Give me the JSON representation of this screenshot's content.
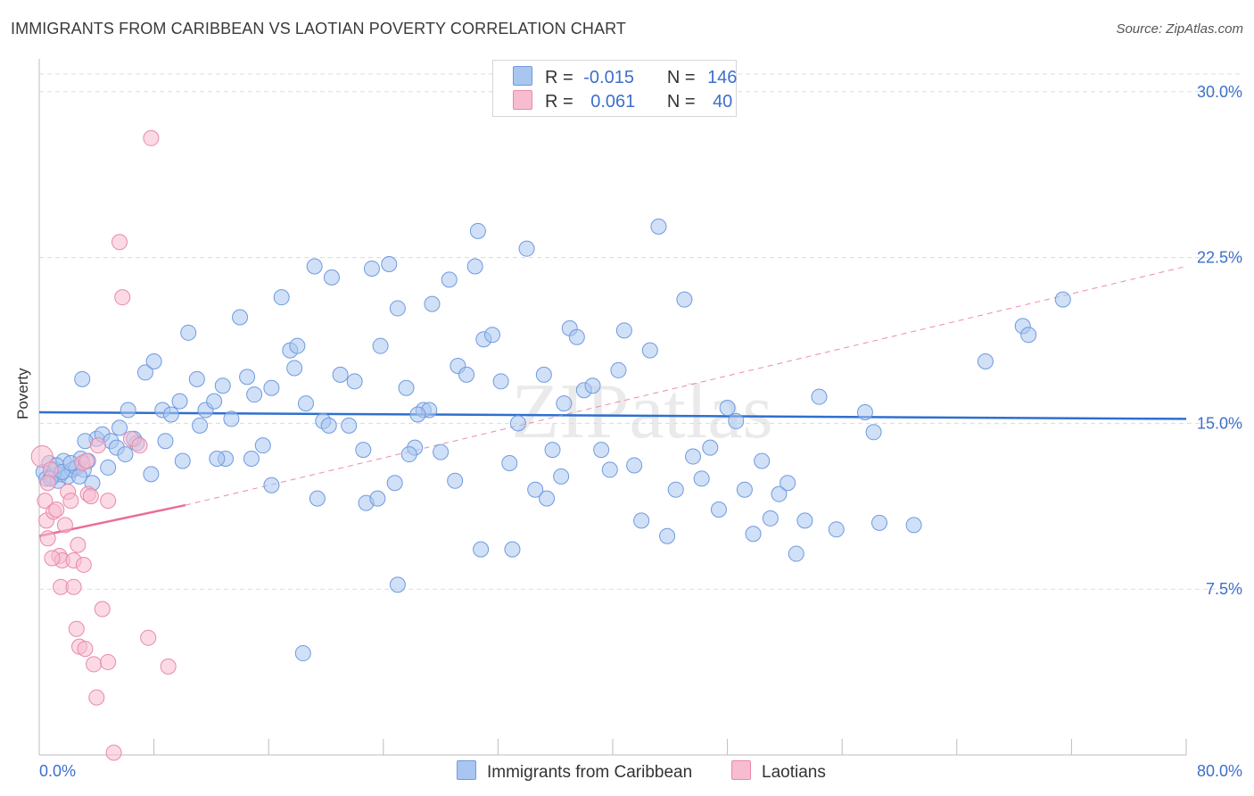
{
  "title": "IMMIGRANTS FROM CARIBBEAN VS LAOTIAN POVERTY CORRELATION CHART",
  "source": "Source: ZipAtlas.com",
  "watermark": "ZIPatlas",
  "legend": {
    "rows": [
      {
        "r_label": "R =",
        "r_value": "-0.015",
        "n_label": "N =",
        "n_value": "146",
        "color": "#a9c6f0",
        "border": "#6f9ae0"
      },
      {
        "r_label": "R =",
        "r_value": "0.061",
        "n_label": "N =",
        "n_value": "40",
        "color": "#f7bcd0",
        "border": "#e889aa"
      }
    ]
  },
  "bottom_legend": [
    {
      "label": "Immigrants from Caribbean",
      "color": "#a9c6f0",
      "border": "#6f9ae0"
    },
    {
      "label": "Laotians",
      "color": "#f7bcd0",
      "border": "#e889aa"
    }
  ],
  "chart_data": {
    "type": "scatter",
    "title": "IMMIGRANTS FROM CARIBBEAN VS LAOTIAN POVERTY CORRELATION CHART",
    "xlabel": "",
    "ylabel": "Poverty",
    "xlim": [
      0,
      80
    ],
    "ylim": [
      0,
      31
    ],
    "x_tick_labels": [
      "0.0%",
      "80.0%"
    ],
    "y_ticks": [
      7.5,
      15.0,
      22.5,
      30.0
    ],
    "y_tick_labels": [
      "7.5%",
      "15.0%",
      "22.5%",
      "30.0%"
    ],
    "grid": true,
    "legend_position": "top-center",
    "series": [
      {
        "name": "Immigrants from Caribbean",
        "color": "#6f9ae0",
        "fill": "#a9c6f0",
        "trend": {
          "x": [
            0,
            80
          ],
          "y": [
            15.5,
            15.2
          ],
          "style": "solid",
          "color": "#2f6fd0"
        },
        "points": [
          [
            0.3,
            12.8
          ],
          [
            0.5,
            12.5
          ],
          [
            0.7,
            13.2
          ],
          [
            0.9,
            12.6
          ],
          [
            1.1,
            12.9
          ],
          [
            1.3,
            12.4
          ],
          [
            1.5,
            12.7
          ],
          [
            1.7,
            13.3
          ],
          [
            2.0,
            12.6
          ],
          [
            2.3,
            12.9
          ],
          [
            2.6,
            13.0
          ],
          [
            2.9,
            13.4
          ],
          [
            3.1,
            12.9
          ],
          [
            3.4,
            13.3
          ],
          [
            3.7,
            12.3
          ],
          [
            0.8,
            12.5
          ],
          [
            1.2,
            13.1
          ],
          [
            1.6,
            12.8
          ],
          [
            2.2,
            13.2
          ],
          [
            2.8,
            12.6
          ],
          [
            3.0,
            17.0
          ],
          [
            4.0,
            14.3
          ],
          [
            4.4,
            14.5
          ],
          [
            5.0,
            14.2
          ],
          [
            5.6,
            14.8
          ],
          [
            6.2,
            15.6
          ],
          [
            6.8,
            14.1
          ],
          [
            7.4,
            17.3
          ],
          [
            8.0,
            17.8
          ],
          [
            8.6,
            15.6
          ],
          [
            9.2,
            15.4
          ],
          [
            9.8,
            16.0
          ],
          [
            10.4,
            19.1
          ],
          [
            11.0,
            17.0
          ],
          [
            11.6,
            15.6
          ],
          [
            12.2,
            16.0
          ],
          [
            12.8,
            16.7
          ],
          [
            13.4,
            15.2
          ],
          [
            14.0,
            19.8
          ],
          [
            14.5,
            17.1
          ],
          [
            15.0,
            16.3
          ],
          [
            15.6,
            14.0
          ],
          [
            16.2,
            16.6
          ],
          [
            16.9,
            20.7
          ],
          [
            17.5,
            18.3
          ],
          [
            18.0,
            18.5
          ],
          [
            18.6,
            15.9
          ],
          [
            19.2,
            22.1
          ],
          [
            19.8,
            15.1
          ],
          [
            20.4,
            21.6
          ],
          [
            21.0,
            17.2
          ],
          [
            21.6,
            14.9
          ],
          [
            22.0,
            16.9
          ],
          [
            22.6,
            13.8
          ],
          [
            23.2,
            22.0
          ],
          [
            23.8,
            18.5
          ],
          [
            24.4,
            22.2
          ],
          [
            25.0,
            20.2
          ],
          [
            25.6,
            16.6
          ],
          [
            26.2,
            13.9
          ],
          [
            26.8,
            15.6
          ],
          [
            27.4,
            20.4
          ],
          [
            28.0,
            13.7
          ],
          [
            28.6,
            21.5
          ],
          [
            29.2,
            17.6
          ],
          [
            29.8,
            17.2
          ],
          [
            30.4,
            22.1
          ],
          [
            30.6,
            23.7
          ],
          [
            31.0,
            18.8
          ],
          [
            31.6,
            19.0
          ],
          [
            32.2,
            16.9
          ],
          [
            32.8,
            13.2
          ],
          [
            33.4,
            15.0
          ],
          [
            34.0,
            22.9
          ],
          [
            34.6,
            12.0
          ],
          [
            35.2,
            17.2
          ],
          [
            35.8,
            13.8
          ],
          [
            36.4,
            12.6
          ],
          [
            37.0,
            19.3
          ],
          [
            37.5,
            18.9
          ],
          [
            38.0,
            16.5
          ],
          [
            38.6,
            16.7
          ],
          [
            39.2,
            13.8
          ],
          [
            39.8,
            12.9
          ],
          [
            40.4,
            17.4
          ],
          [
            40.8,
            19.2
          ],
          [
            41.5,
            13.1
          ],
          [
            42.0,
            10.6
          ],
          [
            42.6,
            18.3
          ],
          [
            43.2,
            23.9
          ],
          [
            43.8,
            9.9
          ],
          [
            44.4,
            12.0
          ],
          [
            45.0,
            20.6
          ],
          [
            45.6,
            13.5
          ],
          [
            46.2,
            12.5
          ],
          [
            46.8,
            13.9
          ],
          [
            47.4,
            11.1
          ],
          [
            48.0,
            15.7
          ],
          [
            48.6,
            15.1
          ],
          [
            49.2,
            12.0
          ],
          [
            49.8,
            10.0
          ],
          [
            50.4,
            13.3
          ],
          [
            51.0,
            10.7
          ],
          [
            51.6,
            11.8
          ],
          [
            52.2,
            12.3
          ],
          [
            52.8,
            9.1
          ],
          [
            53.4,
            10.6
          ],
          [
            54.4,
            16.2
          ],
          [
            55.6,
            10.2
          ],
          [
            57.6,
            15.5
          ],
          [
            58.2,
            14.6
          ],
          [
            58.6,
            10.5
          ],
          [
            61.0,
            10.4
          ],
          [
            66.0,
            17.8
          ],
          [
            68.6,
            19.4
          ],
          [
            69.0,
            19.0
          ],
          [
            71.4,
            20.6
          ],
          [
            14.8,
            13.4
          ],
          [
            13.0,
            13.4
          ],
          [
            6.6,
            14.3
          ],
          [
            7.8,
            12.7
          ],
          [
            10.0,
            13.3
          ],
          [
            12.4,
            13.4
          ],
          [
            16.2,
            12.2
          ],
          [
            18.4,
            4.6
          ],
          [
            19.4,
            11.6
          ],
          [
            22.8,
            11.4
          ],
          [
            23.6,
            11.6
          ],
          [
            24.8,
            12.3
          ],
          [
            25.0,
            7.7
          ],
          [
            25.8,
            13.6
          ],
          [
            27.2,
            15.6
          ],
          [
            29.0,
            12.4
          ],
          [
            30.8,
            9.3
          ],
          [
            33.0,
            9.3
          ],
          [
            35.4,
            11.6
          ],
          [
            36.6,
            15.9
          ],
          [
            5.4,
            13.9
          ],
          [
            8.8,
            14.2
          ],
          [
            11.2,
            14.9
          ],
          [
            17.8,
            17.5
          ],
          [
            20.2,
            14.9
          ],
          [
            26.4,
            15.4
          ],
          [
            3.2,
            14.2
          ],
          [
            4.8,
            13.0
          ],
          [
            6.0,
            13.6
          ]
        ]
      },
      {
        "name": "Laotians",
        "color": "#e889aa",
        "fill": "#f7bcd0",
        "trend": {
          "x": [
            0,
            10.2
          ],
          "y": [
            9.9,
            11.3
          ],
          "style": "solid",
          "color": "#e86f97",
          "extended": {
            "x": [
              10.2,
              80
            ],
            "y": [
              11.3,
              22.1
            ],
            "style": "dashed"
          }
        },
        "points": [
          [
            0.2,
            13.5
          ],
          [
            0.4,
            11.5
          ],
          [
            0.5,
            10.6
          ],
          [
            0.6,
            9.8
          ],
          [
            0.8,
            12.9
          ],
          [
            1.0,
            11.0
          ],
          [
            1.2,
            11.1
          ],
          [
            1.4,
            9.0
          ],
          [
            1.6,
            8.8
          ],
          [
            1.8,
            10.4
          ],
          [
            2.0,
            11.9
          ],
          [
            2.2,
            11.5
          ],
          [
            2.4,
            8.8
          ],
          [
            2.6,
            5.7
          ],
          [
            2.7,
            9.5
          ],
          [
            2.8,
            4.9
          ],
          [
            3.0,
            13.2
          ],
          [
            3.1,
            8.6
          ],
          [
            3.2,
            4.8
          ],
          [
            3.4,
            11.8
          ],
          [
            3.6,
            11.7
          ],
          [
            3.8,
            4.1
          ],
          [
            4.0,
            2.6
          ],
          [
            4.1,
            14.0
          ],
          [
            4.4,
            6.6
          ],
          [
            4.8,
            4.2
          ],
          [
            4.8,
            11.5
          ],
          [
            5.2,
            0.1
          ],
          [
            5.6,
            23.2
          ],
          [
            5.8,
            20.7
          ],
          [
            6.4,
            14.3
          ],
          [
            7.0,
            14.0
          ],
          [
            7.6,
            5.3
          ],
          [
            9.0,
            4.0
          ],
          [
            7.8,
            27.9
          ],
          [
            1.5,
            7.6
          ],
          [
            2.4,
            7.6
          ],
          [
            0.9,
            8.9
          ],
          [
            3.3,
            13.3
          ],
          [
            0.6,
            12.3
          ]
        ]
      }
    ]
  }
}
